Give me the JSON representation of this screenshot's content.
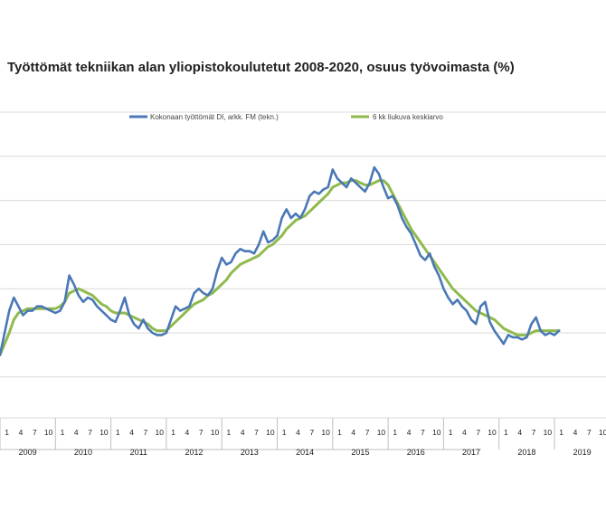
{
  "title": "Työttömät tekniikan alan yliopistokoulutetut 2008-2020, osuus työvoimasta (%)",
  "colors": {
    "series1": "#4a78b5",
    "series2": "#8fba4e",
    "grid": "#d9d9d9",
    "axis_text": "#222222"
  },
  "chart_data": {
    "type": "line",
    "title": "Työttömät tekniikan alan yliopistokoulutetut 2008-2020, osuus työvoimasta (%)",
    "xlabel": "",
    "ylabel": "",
    "ylim": [
      0,
      10
    ],
    "grid": true,
    "legend_position": "top",
    "month_tick_labels": [
      "1",
      "4",
      "7",
      "10"
    ],
    "years": [
      "2009",
      "2010",
      "2011",
      "2012",
      "2013",
      "2014",
      "2015",
      "2016",
      "2017",
      "2018",
      "2019"
    ],
    "series": [
      {
        "name": "Kokonaan työttömät DI, arkk. FM (tekn.)",
        "values": [
          4.5,
          5.0,
          5.5,
          5.8,
          5.6,
          5.4,
          5.5,
          5.5,
          5.6,
          5.6,
          5.55,
          5.5,
          5.45,
          5.5,
          5.7,
          6.3,
          6.1,
          5.85,
          5.7,
          5.8,
          5.75,
          5.6,
          5.5,
          5.4,
          5.3,
          5.25,
          5.5,
          5.8,
          5.4,
          5.2,
          5.1,
          5.3,
          5.1,
          5.0,
          4.95,
          4.95,
          5.0,
          5.3,
          5.6,
          5.5,
          5.55,
          5.6,
          5.9,
          6.0,
          5.9,
          5.85,
          6.0,
          6.4,
          6.7,
          6.55,
          6.6,
          6.8,
          6.9,
          6.85,
          6.85,
          6.8,
          7.0,
          7.3,
          7.05,
          7.1,
          7.2,
          7.6,
          7.8,
          7.6,
          7.7,
          7.6,
          7.8,
          8.1,
          8.2,
          8.15,
          8.25,
          8.3,
          8.7,
          8.5,
          8.4,
          8.3,
          8.5,
          8.4,
          8.3,
          8.2,
          8.4,
          8.75,
          8.6,
          8.3,
          8.05,
          8.1,
          7.9,
          7.6,
          7.4,
          7.25,
          7.0,
          6.75,
          6.65,
          6.8,
          6.5,
          6.3,
          6.0,
          5.8,
          5.65,
          5.75,
          5.6,
          5.5,
          5.3,
          5.2,
          5.6,
          5.7,
          5.25,
          5.05,
          4.9,
          4.75,
          4.95,
          4.9,
          4.9,
          4.85,
          4.9,
          5.2,
          5.35,
          5.05,
          4.95,
          5.0,
          4.95,
          5.05
        ]
      },
      {
        "name": "6 kk liukuva keskiarvo",
        "values": [
          4.5,
          4.75,
          5.0,
          5.3,
          5.45,
          5.5,
          5.55,
          5.55,
          5.55,
          5.55,
          5.55,
          5.55,
          5.55,
          5.6,
          5.7,
          5.9,
          5.95,
          6.0,
          5.95,
          5.9,
          5.85,
          5.75,
          5.65,
          5.6,
          5.5,
          5.45,
          5.45,
          5.45,
          5.4,
          5.35,
          5.3,
          5.25,
          5.2,
          5.1,
          5.05,
          5.05,
          5.05,
          5.15,
          5.25,
          5.35,
          5.45,
          5.55,
          5.65,
          5.7,
          5.75,
          5.85,
          5.9,
          6.0,
          6.1,
          6.2,
          6.35,
          6.45,
          6.55,
          6.6,
          6.65,
          6.7,
          6.75,
          6.85,
          6.95,
          7.0,
          7.1,
          7.2,
          7.35,
          7.45,
          7.55,
          7.6,
          7.65,
          7.75,
          7.85,
          7.95,
          8.05,
          8.15,
          8.3,
          8.35,
          8.4,
          8.4,
          8.45,
          8.45,
          8.4,
          8.35,
          8.35,
          8.4,
          8.45,
          8.45,
          8.35,
          8.15,
          7.95,
          7.75,
          7.55,
          7.35,
          7.2,
          7.05,
          6.9,
          6.75,
          6.6,
          6.45,
          6.3,
          6.15,
          6.0,
          5.9,
          5.8,
          5.7,
          5.6,
          5.5,
          5.45,
          5.4,
          5.35,
          5.3,
          5.2,
          5.1,
          5.05,
          5.0,
          4.95,
          4.95,
          4.95,
          5.0,
          5.05,
          5.05,
          5.05,
          5.05,
          5.05,
          5.05
        ]
      }
    ]
  }
}
